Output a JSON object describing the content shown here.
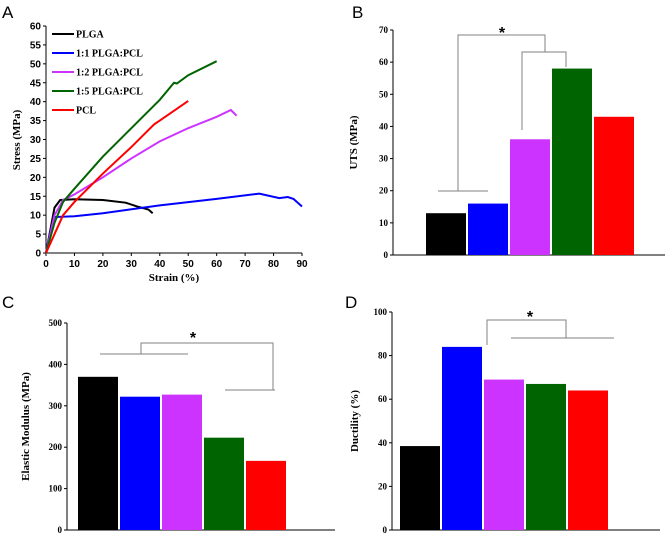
{
  "colors": {
    "PLGA": "#000000",
    "1:1 PLGA:PCL": "#0000ff",
    "1:2 PLGA:PCL": "#cc33ff",
    "1:5 PLGA:PCL": "#006400",
    "PCL": "#ff0000",
    "bracket": "#808080"
  },
  "chart_data": [
    {
      "panel": "A",
      "type": "line",
      "xlabel": "Strain (%)",
      "ylabel": "Stress (MPa)",
      "xlim": [
        0,
        90
      ],
      "ylim": [
        0,
        60
      ],
      "xticks": [
        0,
        10,
        20,
        30,
        40,
        50,
        60,
        70,
        80,
        90
      ],
      "yticks": [
        0,
        5,
        10,
        15,
        20,
        25,
        30,
        35,
        40,
        45,
        50,
        55,
        60
      ],
      "legend": "top-left",
      "series": [
        {
          "name": "PLGA",
          "points": [
            [
              0,
              0
            ],
            [
              1,
              4
            ],
            [
              2,
              8
            ],
            [
              3,
              12
            ],
            [
              5,
              14
            ],
            [
              10,
              14.2
            ],
            [
              20,
              14
            ],
            [
              28,
              13.3
            ],
            [
              32,
              12.3
            ],
            [
              36,
              11.5
            ],
            [
              37.5,
              10.5
            ]
          ]
        },
        {
          "name": "1:1 PLGA:PCL",
          "points": [
            [
              0,
              0
            ],
            [
              2,
              7
            ],
            [
              3,
              9.5
            ],
            [
              10,
              9.7
            ],
            [
              20,
              10.5
            ],
            [
              40,
              12.6
            ],
            [
              60,
              14.3
            ],
            [
              75,
              15.7
            ],
            [
              82,
              14.5
            ],
            [
              85,
              14.8
            ],
            [
              87,
              14.3
            ],
            [
              90,
              12.3
            ]
          ]
        },
        {
          "name": "1:2 PLGA:PCL",
          "points": [
            [
              0,
              0
            ],
            [
              3,
              10
            ],
            [
              6,
              14
            ],
            [
              10,
              15.5
            ],
            [
              20,
              20
            ],
            [
              30,
              25
            ],
            [
              40,
              29.5
            ],
            [
              50,
              33
            ],
            [
              60,
              36
            ],
            [
              65,
              37.8
            ],
            [
              67,
              36.3
            ]
          ]
        },
        {
          "name": "1:5 PLGA:PCL",
          "points": [
            [
              0,
              0
            ],
            [
              3,
              8
            ],
            [
              6,
              13.5
            ],
            [
              10,
              17
            ],
            [
              20,
              25.5
            ],
            [
              30,
              33
            ],
            [
              40,
              40.5
            ],
            [
              45,
              45
            ],
            [
              46,
              44.8
            ],
            [
              50,
              47
            ],
            [
              60,
              50.7
            ]
          ]
        },
        {
          "name": "PCL",
          "points": [
            [
              0,
              0
            ],
            [
              3,
              5
            ],
            [
              6,
              10
            ],
            [
              10,
              13.5
            ],
            [
              20,
              21
            ],
            [
              30,
              28
            ],
            [
              38,
              34
            ],
            [
              40,
              35
            ],
            [
              50,
              40.2
            ]
          ]
        }
      ]
    },
    {
      "panel": "B",
      "type": "bar",
      "ylabel": "UTS (MPa)",
      "ylim": [
        0,
        70
      ],
      "yticks": [
        0,
        10,
        20,
        30,
        40,
        50,
        60,
        70
      ],
      "categories": [
        "PLGA",
        "1:1 PLGA:PCL",
        "1:2 PLGA:PCL",
        "1:5 PLGA:PCL",
        "PCL"
      ],
      "values": [
        13,
        16,
        36,
        58,
        43
      ],
      "annotation": "*"
    },
    {
      "panel": "C",
      "type": "bar",
      "ylabel": "Elastic Modulus (MPa)",
      "ylim": [
        0,
        500
      ],
      "yticks": [
        0,
        100,
        200,
        300,
        400,
        500
      ],
      "categories": [
        "PLGA",
        "1:1 PLGA:PCL",
        "1:2 PLGA:PCL",
        "1:5 PLGA:PCL",
        "PCL"
      ],
      "values": [
        370,
        322,
        327,
        223,
        167
      ],
      "annotation": "*"
    },
    {
      "panel": "D",
      "type": "bar",
      "ylabel": "Ductility (%)",
      "ylim": [
        0,
        100
      ],
      "yticks": [
        0,
        20,
        40,
        60,
        80,
        100
      ],
      "categories": [
        "PLGA",
        "1:1 PLGA:PCL",
        "1:2 PLGA:PCL",
        "1:5 PLGA:PCL",
        "PCL"
      ],
      "values": [
        38.5,
        84,
        69,
        67,
        64
      ],
      "annotation": "*"
    }
  ]
}
